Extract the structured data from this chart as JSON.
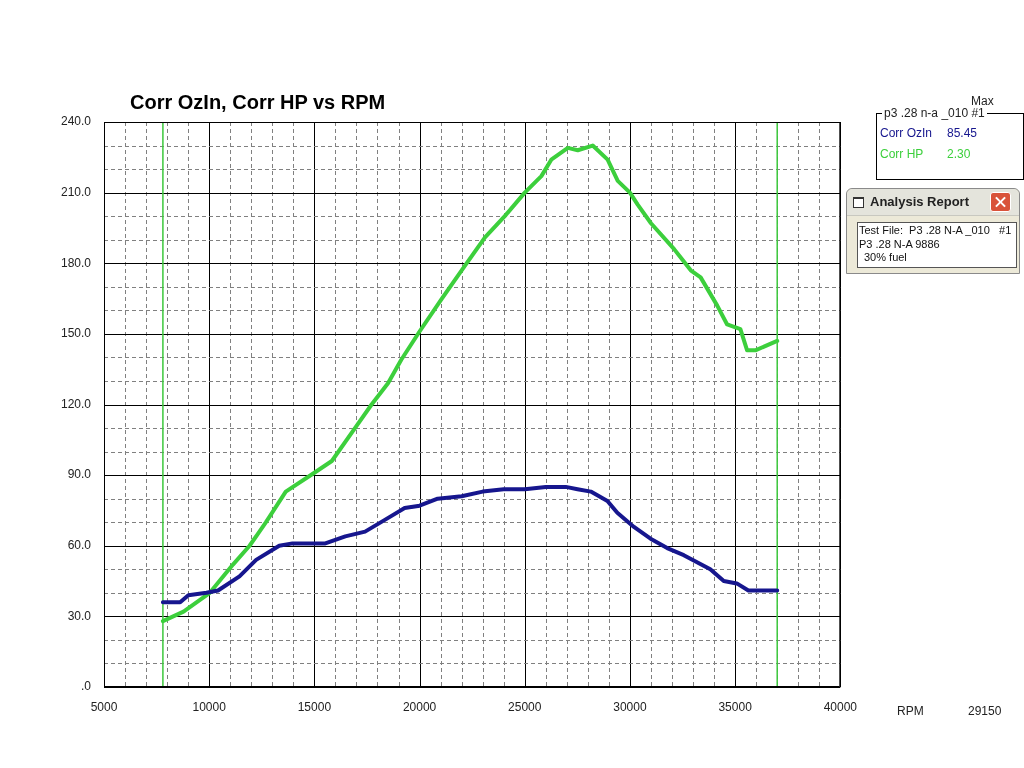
{
  "chart_data": {
    "type": "line",
    "title": "Corr OzIn, Corr HP vs RPM",
    "xlabel": "RPM",
    "legend_title": "p3 .28 n-a _010 #1",
    "xlim": [
      5000,
      40000
    ],
    "xticks": [
      5000,
      {
        "value": 6000,
        "label": null
      },
      {
        "value": 7000,
        "label": null
      },
      {
        "value": 8000,
        "label": null
      },
      {
        "value": 9000,
        "label": null
      },
      10000,
      {
        "value": 11000,
        "label": null
      },
      {
        "value": 12000,
        "label": null
      },
      {
        "value": 13000,
        "label": null
      },
      {
        "value": 14000,
        "label": null
      },
      15000,
      {
        "value": 16000,
        "label": null
      },
      {
        "value": 17000,
        "label": null
      },
      {
        "value": 18000,
        "label": null
      },
      {
        "value": 19000,
        "label": null
      },
      20000,
      {
        "value": 21000,
        "label": null
      },
      {
        "value": 22000,
        "label": null
      },
      {
        "value": 23000,
        "label": null
      },
      {
        "value": 24000,
        "label": null
      },
      25000,
      {
        "value": 26000,
        "label": null
      },
      {
        "value": 27000,
        "label": null
      },
      {
        "value": 28000,
        "label": null
      },
      {
        "value": 29000,
        "label": null
      },
      30000,
      {
        "value": 31000,
        "label": null
      },
      {
        "value": 32000,
        "label": null
      },
      {
        "value": 33000,
        "label": null
      },
      {
        "value": 34000,
        "label": null
      },
      35000,
      {
        "value": 36000,
        "label": null
      },
      {
        "value": 37000,
        "label": null
      },
      {
        "value": 38000,
        "label": null
      },
      {
        "value": 39000,
        "label": null
      },
      40000
    ],
    "ylim": [
      0,
      240
    ],
    "yticks": [
      {
        "value": 0,
        "label": ".0"
      },
      {
        "value": 10,
        "label": null
      },
      {
        "value": 20,
        "label": null
      },
      {
        "value": 30,
        "label": "30.0"
      },
      {
        "value": 40,
        "label": null
      },
      {
        "value": 50,
        "label": null
      },
      {
        "value": 60,
        "label": "60.0"
      },
      {
        "value": 70,
        "label": null
      },
      {
        "value": 80,
        "label": null
      },
      {
        "value": 90,
        "label": "90.0"
      },
      {
        "value": 100,
        "label": null
      },
      {
        "value": 110,
        "label": null
      },
      {
        "value": 120,
        "label": "120.0"
      },
      {
        "value": 130,
        "label": null
      },
      {
        "value": 140,
        "label": null
      },
      {
        "value": 150,
        "label": "150.0"
      },
      {
        "value": 160,
        "label": null
      },
      {
        "value": 170,
        "label": null
      },
      {
        "value": 180,
        "label": "180.0"
      },
      {
        "value": 190,
        "label": null
      },
      {
        "value": 200,
        "label": null
      },
      {
        "value": 210,
        "label": "210.0"
      },
      {
        "value": 220,
        "label": null
      },
      {
        "value": 230,
        "label": null
      },
      {
        "value": 240,
        "label": "240.0"
      }
    ],
    "grid": true,
    "legend": "top right",
    "marker": "none",
    "line_style": "solid",
    "series": [
      {
        "name": "Corr OzIn",
        "color": "#16168e",
        "x": [
          7800,
          8620,
          9010,
          9870,
          10420,
          11440,
          12230,
          13330,
          13960,
          15520,
          16470,
          17410,
          18350,
          19290,
          20000,
          20860,
          22000,
          23000,
          24000,
          25000,
          26000,
          26950,
          27510,
          28140,
          28930,
          29400,
          30190,
          30980,
          31770,
          32560,
          33190,
          33820,
          34460,
          35080,
          35630,
          37000
        ],
        "values": [
          36,
          36,
          39,
          40,
          41,
          47,
          54,
          60,
          61,
          61,
          64,
          66,
          71,
          76,
          77,
          80,
          81,
          83,
          84,
          84,
          85,
          85,
          84,
          83,
          79,
          74,
          68,
          63,
          59,
          56,
          53,
          50,
          45,
          44,
          41,
          41
        ]
      },
      {
        "name": "Corr HP",
        "color": "#3ccf3c",
        "x": [
          7800,
          8780,
          10030,
          11130,
          11920,
          12700,
          13640,
          15000,
          15830,
          16930,
          17720,
          18500,
          19130,
          20000,
          21060,
          22160,
          23110,
          24050,
          25000,
          25790,
          26260,
          27050,
          27520,
          28230,
          28940,
          29420,
          30000,
          30360,
          31000,
          32100,
          32890,
          33360,
          34150,
          34620,
          35250,
          35570,
          35960,
          37000
        ],
        "values": [
          28,
          32,
          40,
          52,
          60,
          70,
          83,
          91,
          96,
          110,
          120,
          129,
          139,
          151,
          165,
          179,
          191,
          200,
          210,
          217,
          224,
          229,
          228,
          230,
          224,
          215,
          210,
          205,
          197,
          186,
          177,
          174,
          162,
          154,
          152,
          143,
          143,
          147
        ]
      }
    ],
    "ref_lines": [
      {
        "axis": "x",
        "value": 7800,
        "color": "#3cc83c"
      },
      {
        "axis": "x",
        "value": 37000,
        "color": "#3cc83c"
      }
    ],
    "annotations": [
      "Max",
      "85.45",
      "2.30",
      "Analysis Report",
      "Test File:  P3 .28 N-A _010   #1",
      "P3 .28 N-A 9886",
      "30% fuel",
      "29150"
    ]
  }
}
